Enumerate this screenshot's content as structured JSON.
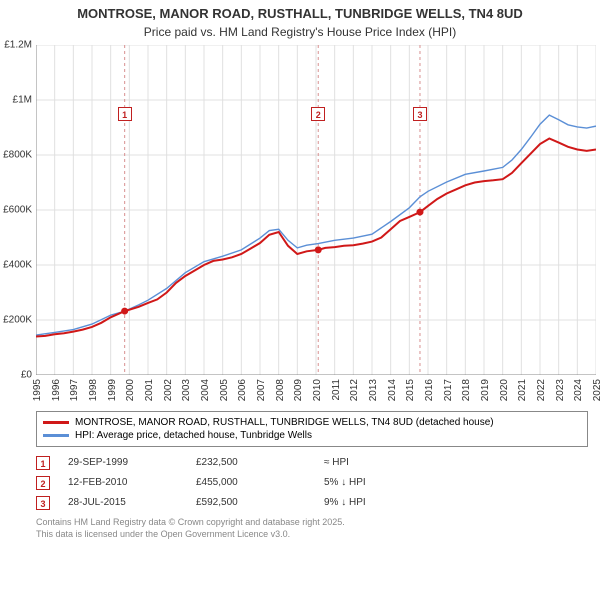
{
  "title": "MONTROSE, MANOR ROAD, RUSTHALL, TUNBRIDGE WELLS, TN4 8UD",
  "subtitle": "Price paid vs. HM Land Registry's House Price Index (HPI)",
  "chart": {
    "type": "line",
    "background_color": "#ffffff",
    "grid_color": "#e0e0e0",
    "axis_color": "#888888",
    "xlim": [
      1995,
      2025
    ],
    "ylim": [
      0,
      1200000
    ],
    "ytick_step": 200000,
    "ytick_labels": [
      "£0",
      "£200K",
      "£400K",
      "£600K",
      "£800K",
      "£1M",
      "£1.2M"
    ],
    "xtick_step": 1,
    "label_fontsize": 10,
    "series": [
      {
        "name": "price_paid",
        "label": "MONTROSE, MANOR ROAD, RUSTHALL, TUNBRIDGE WELLS, TN4 8UD (detached house)",
        "color": "#d01818",
        "line_width": 2,
        "data": [
          [
            1995.0,
            140000
          ],
          [
            1995.5,
            142000
          ],
          [
            1996.0,
            148000
          ],
          [
            1996.5,
            152000
          ],
          [
            1997.0,
            158000
          ],
          [
            1997.5,
            165000
          ],
          [
            1998.0,
            175000
          ],
          [
            1998.5,
            190000
          ],
          [
            1999.0,
            210000
          ],
          [
            1999.75,
            232500
          ],
          [
            2000.5,
            248000
          ],
          [
            2001.0,
            262000
          ],
          [
            2001.5,
            275000
          ],
          [
            2002.0,
            300000
          ],
          [
            2002.5,
            335000
          ],
          [
            2003.0,
            360000
          ],
          [
            2003.5,
            380000
          ],
          [
            2004.0,
            400000
          ],
          [
            2004.5,
            415000
          ],
          [
            2005.0,
            420000
          ],
          [
            2005.5,
            428000
          ],
          [
            2006.0,
            440000
          ],
          [
            2006.5,
            460000
          ],
          [
            2007.0,
            480000
          ],
          [
            2007.5,
            510000
          ],
          [
            2008.0,
            520000
          ],
          [
            2008.5,
            470000
          ],
          [
            2009.0,
            440000
          ],
          [
            2009.5,
            450000
          ],
          [
            2010.12,
            455000
          ],
          [
            2010.5,
            462000
          ],
          [
            2011.0,
            465000
          ],
          [
            2011.5,
            470000
          ],
          [
            2012.0,
            472000
          ],
          [
            2012.5,
            478000
          ],
          [
            2013.0,
            485000
          ],
          [
            2013.5,
            500000
          ],
          [
            2014.0,
            530000
          ],
          [
            2014.5,
            560000
          ],
          [
            2015.0,
            575000
          ],
          [
            2015.57,
            592500
          ],
          [
            2016.0,
            615000
          ],
          [
            2016.5,
            640000
          ],
          [
            2017.0,
            660000
          ],
          [
            2017.5,
            675000
          ],
          [
            2018.0,
            690000
          ],
          [
            2018.5,
            700000
          ],
          [
            2019.0,
            705000
          ],
          [
            2019.5,
            708000
          ],
          [
            2020.0,
            712000
          ],
          [
            2020.5,
            735000
          ],
          [
            2021.0,
            770000
          ],
          [
            2021.5,
            805000
          ],
          [
            2022.0,
            840000
          ],
          [
            2022.5,
            860000
          ],
          [
            2023.0,
            845000
          ],
          [
            2023.5,
            830000
          ],
          [
            2024.0,
            820000
          ],
          [
            2024.5,
            815000
          ],
          [
            2025.0,
            820000
          ]
        ]
      },
      {
        "name": "hpi",
        "label": "HPI: Average price, detached house, Tunbridge Wells",
        "color": "#5b8fd6",
        "line_width": 1.4,
        "data": [
          [
            1995.0,
            145000
          ],
          [
            1996.0,
            155000
          ],
          [
            1997.0,
            165000
          ],
          [
            1998.0,
            185000
          ],
          [
            1999.0,
            218000
          ],
          [
            1999.75,
            232000
          ],
          [
            2000.5,
            255000
          ],
          [
            2001.0,
            272000
          ],
          [
            2002.0,
            315000
          ],
          [
            2003.0,
            372000
          ],
          [
            2004.0,
            412000
          ],
          [
            2005.0,
            432000
          ],
          [
            2006.0,
            455000
          ],
          [
            2007.0,
            498000
          ],
          [
            2007.5,
            525000
          ],
          [
            2008.0,
            530000
          ],
          [
            2008.5,
            490000
          ],
          [
            2009.0,
            462000
          ],
          [
            2009.5,
            472000
          ],
          [
            2010.12,
            478000
          ],
          [
            2011.0,
            490000
          ],
          [
            2012.0,
            498000
          ],
          [
            2013.0,
            512000
          ],
          [
            2014.0,
            558000
          ],
          [
            2015.0,
            608000
          ],
          [
            2015.57,
            648000
          ],
          [
            2016.0,
            668000
          ],
          [
            2017.0,
            702000
          ],
          [
            2018.0,
            730000
          ],
          [
            2019.0,
            742000
          ],
          [
            2020.0,
            755000
          ],
          [
            2020.5,
            782000
          ],
          [
            2021.0,
            820000
          ],
          [
            2021.5,
            865000
          ],
          [
            2022.0,
            912000
          ],
          [
            2022.5,
            945000
          ],
          [
            2023.0,
            928000
          ],
          [
            2023.5,
            910000
          ],
          [
            2024.0,
            902000
          ],
          [
            2024.5,
            898000
          ],
          [
            2025.0,
            905000
          ]
        ]
      }
    ],
    "markers": [
      {
        "n": "1",
        "x": 1999.75,
        "y": 232500,
        "dash_color": "#d89090"
      },
      {
        "n": "2",
        "x": 2010.12,
        "y": 455000,
        "dash_color": "#d89090"
      },
      {
        "n": "3",
        "x": 2015.57,
        "y": 592500,
        "dash_color": "#d89090"
      }
    ]
  },
  "legend": {
    "items": [
      {
        "swatch_color": "#d01818",
        "label_ref": "chart.series.0.label"
      },
      {
        "swatch_color": "#5b8fd6",
        "label_ref": "chart.series.1.label"
      }
    ]
  },
  "transactions": [
    {
      "n": "1",
      "date": "29-SEP-1999",
      "price": "£232,500",
      "hpi_note": "≈ HPI"
    },
    {
      "n": "2",
      "date": "12-FEB-2010",
      "price": "£455,000",
      "hpi_note": "5% ↓ HPI"
    },
    {
      "n": "3",
      "date": "28-JUL-2015",
      "price": "£592,500",
      "hpi_note": "9% ↓ HPI"
    }
  ],
  "footer_line1": "Contains HM Land Registry data © Crown copyright and database right 2025.",
  "footer_line2": "This data is licensed under the Open Government Licence v3.0."
}
